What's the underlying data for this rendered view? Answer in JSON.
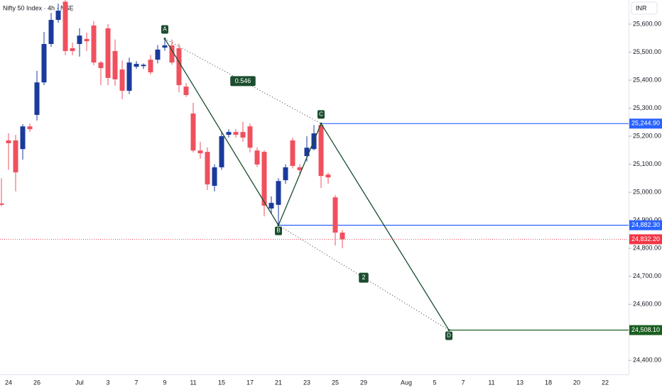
{
  "chart_data": {
    "type": "candlestick",
    "title": "Nifty 50 Index · 4h · NSE",
    "currency": "INR",
    "categories": [
      null,
      "24",
      null,
      null,
      null,
      "26",
      null,
      null,
      null,
      null,
      null,
      "Jul",
      null,
      null,
      null,
      "3",
      null,
      null,
      null,
      "7",
      null,
      null,
      null,
      "9",
      null,
      null,
      null,
      "11",
      null,
      null,
      null,
      "15",
      null,
      null,
      null,
      "17",
      null,
      null,
      null,
      "21",
      null,
      null,
      null,
      "23",
      null,
      null,
      null,
      "25",
      null,
      null,
      null,
      "29",
      null,
      null,
      null,
      null,
      null,
      "Aug",
      null,
      null,
      null,
      "5",
      null,
      null,
      null,
      "7",
      null,
      null,
      null,
      "11",
      null,
      null,
      null,
      "13",
      null,
      null,
      null,
      "18",
      null,
      null,
      null,
      "20",
      null,
      null,
      null,
      "22",
      null,
      null
    ],
    "open": [
      24960,
      25185,
      25185,
      25154,
      25235,
      25276,
      25392,
      25529,
      25615,
      25680,
      25514,
      25529,
      25547,
      25595,
      25463,
      25585,
      25504,
      25438,
      25362,
      25448,
      25450,
      25473,
      25473,
      25516,
      25524,
      25514,
      25377,
      25281,
      25149,
      25144,
      25023,
      25089,
      25205,
      25215,
      25215,
      25235,
      25149,
      25144,
      24942,
      24955,
      25043,
      25185,
      25089,
      25129,
      25154,
      25240,
      25063,
      24982,
      24856,
      null,
      null,
      null,
      null,
      null,
      null,
      null,
      null,
      null,
      null,
      null,
      null,
      null,
      null,
      null,
      null,
      null,
      null,
      null,
      null,
      null,
      null,
      null,
      null,
      null,
      null,
      null,
      null,
      null,
      null,
      null,
      null,
      null,
      null,
      null,
      null,
      null,
      null,
      null
    ],
    "high": [
      25050,
      25210,
      25205,
      25243,
      25245,
      25433,
      25572,
      25640,
      25673,
      25686,
      25534,
      25585,
      25570,
      25610,
      25468,
      25600,
      25545,
      25470,
      25480,
      25468,
      25460,
      25490,
      25525,
      25548,
      25545,
      25530,
      25390,
      25319,
      25180,
      25160,
      25100,
      25215,
      25225,
      25225,
      25251,
      25245,
      25160,
      25150,
      24985,
      25050,
      25100,
      25195,
      25100,
      25200,
      25240,
      25245,
      25070,
      24990,
      24865,
      null,
      null,
      null,
      null,
      null,
      null,
      null,
      null,
      null,
      null,
      null,
      null,
      null,
      null,
      null,
      null,
      null,
      null,
      null,
      null,
      null,
      null,
      null,
      null,
      null,
      null,
      null,
      null,
      null,
      null,
      null,
      null,
      null,
      null,
      null,
      null,
      null,
      null,
      null
    ],
    "low": [
      24950,
      25080,
      25003,
      25116,
      25215,
      25256,
      25382,
      25519,
      25605,
      25489,
      25489,
      25484,
      25504,
      25453,
      25382,
      25382,
      25380,
      25332,
      25350,
      25440,
      25440,
      25420,
      25460,
      25505,
      25455,
      25357,
      25340,
      25142,
      25120,
      25008,
      25003,
      25080,
      25195,
      25195,
      25180,
      25142,
      25090,
      24914,
      24925,
      24882,
      25030,
      25085,
      25060,
      25110,
      25150,
      25015,
      25030,
      24810,
      24800,
      null,
      null,
      null,
      null,
      null,
      null,
      null,
      null,
      null,
      null,
      null,
      null,
      null,
      null,
      null,
      null,
      null,
      null,
      null,
      null,
      null,
      null,
      null,
      null,
      null,
      null,
      null,
      null,
      null,
      null,
      null,
      null,
      null,
      null,
      null,
      null,
      null,
      null,
      null
    ],
    "close": [
      24955,
      25175,
      25071,
      25235,
      25225,
      25392,
      25529,
      25615,
      25648,
      25504,
      25504,
      25559,
      25539,
      25463,
      25443,
      25408,
      25403,
      25362,
      25463,
      25458,
      25455,
      25428,
      25509,
      25524,
      25463,
      25382,
      25347,
      25149,
      25139,
      25028,
      25089,
      25200,
      25215,
      25205,
      25195,
      25159,
      25099,
      24952,
      24962,
      25040,
      25089,
      25094,
      25079,
      25159,
      25210,
      25058,
      25053,
      24856,
      24832.2,
      null,
      null,
      null,
      null,
      null,
      null,
      null,
      null,
      null,
      null,
      null,
      null,
      null,
      null,
      null,
      null,
      null,
      null,
      null,
      null,
      null,
      null,
      null,
      null,
      null,
      null,
      null,
      null,
      null,
      null,
      null,
      null,
      null,
      null,
      null,
      null,
      null,
      null,
      null
    ],
    "colors": {
      "up": "#1a3a9c",
      "down": "#f0505e"
    },
    "ylim": [
      24350,
      25686
    ],
    "yticks": [
      {
        "value": 24400,
        "label": "24,400.00"
      },
      {
        "value": 24500,
        "label": "24,500.00"
      },
      {
        "value": 24600,
        "label": "24,600.00"
      },
      {
        "value": 24700,
        "label": "24,700.00"
      },
      {
        "value": 24800,
        "label": "24,800.00"
      },
      {
        "value": 24900,
        "label": "24,900.00"
      },
      {
        "value": 25000,
        "label": "25,000.00"
      },
      {
        "value": 25100,
        "label": "25,100.00"
      },
      {
        "value": 25200,
        "label": "25,200.00"
      },
      {
        "value": 25300,
        "label": "25,300.00"
      },
      {
        "value": 25400,
        "label": "25,400.00"
      },
      {
        "value": 25500,
        "label": "25,500.00"
      },
      {
        "value": 25600,
        "label": "25,600.00"
      }
    ],
    "grid": false,
    "levels": [
      {
        "value": 25244.9,
        "label": "25,244.90",
        "color": "#2962ff",
        "style": "solid"
      },
      {
        "value": 24882.3,
        "label": "24,882.30",
        "color": "#2962ff",
        "style": "solid"
      },
      {
        "value": 24832.2,
        "label": "24,832.20",
        "color": "#f23645",
        "style": "dotted"
      },
      {
        "value": 24508.1,
        "label": "24,508.10",
        "color": "#1b5e20",
        "style": "solid"
      }
    ],
    "pattern": {
      "color": "#1b4d2e",
      "points": [
        {
          "label": "A",
          "x": 23,
          "value": 25548
        },
        {
          "label": "B",
          "x": 39,
          "value": 24882.3
        },
        {
          "label": "C",
          "x": 45,
          "value": 25244.9
        },
        {
          "label": "D",
          "x": 63,
          "value": 24508.1
        }
      ],
      "ratios": [
        {
          "label": "0.546"
        },
        {
          "label": "2"
        }
      ]
    }
  }
}
